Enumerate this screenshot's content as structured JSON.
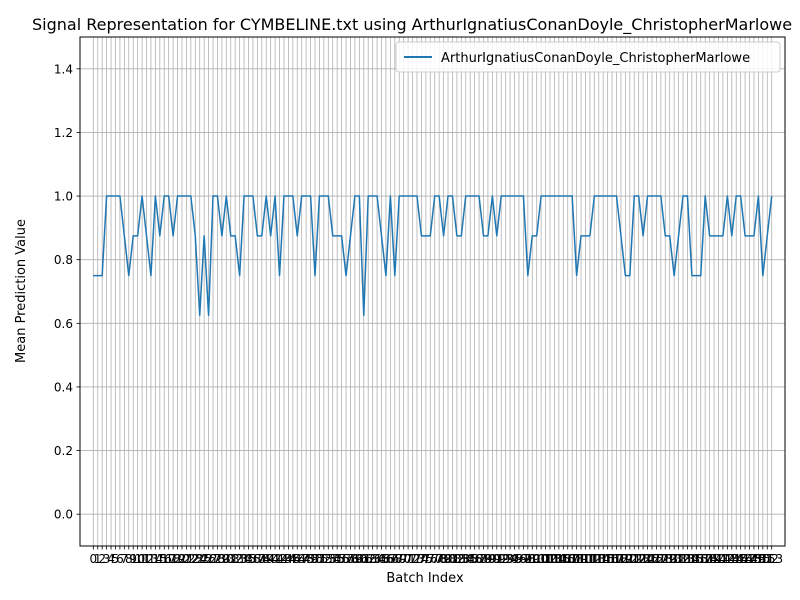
{
  "chart_data": {
    "type": "line",
    "title": "Signal Representation for CYMBELINE.txt using ArthurIgnatiusConanDoyle_ChristopherMarlowe",
    "xlabel": "Batch Index",
    "ylabel": "Mean Prediction Value",
    "ylim": [
      -0.1,
      1.5
    ],
    "xlim": [
      -3,
      156
    ],
    "yticks": [
      "0.0",
      "0.2",
      "0.4",
      "0.6",
      "0.8",
      "1.0",
      "1.2",
      "1.4"
    ],
    "ytick_values": [
      0.0,
      0.2,
      0.4,
      0.6,
      0.8,
      1.0,
      1.2,
      1.4
    ],
    "xticks_per_batch": true,
    "grid": true,
    "legend_position": "top-right",
    "series": [
      {
        "name": "ArthurIgnatiusConanDoyle_ChristopherMarlowe",
        "color": "#1f77b4",
        "values": [
          0.75,
          0.75,
          0.75,
          1.0,
          1.0,
          1.0,
          1.0,
          0.875,
          0.75,
          0.875,
          0.875,
          1.0,
          0.875,
          0.75,
          1.0,
          0.875,
          1.0,
          1.0,
          0.875,
          1.0,
          1.0,
          1.0,
          1.0,
          0.875,
          0.625,
          0.875,
          0.625,
          1.0,
          1.0,
          0.875,
          1.0,
          0.875,
          0.875,
          0.75,
          1.0,
          1.0,
          1.0,
          0.875,
          0.875,
          1.0,
          0.875,
          1.0,
          0.75,
          1.0,
          1.0,
          1.0,
          0.875,
          1.0,
          1.0,
          1.0,
          0.75,
          1.0,
          1.0,
          1.0,
          0.875,
          0.875,
          0.875,
          0.75,
          0.875,
          1.0,
          1.0,
          0.625,
          1.0,
          1.0,
          1.0,
          0.875,
          0.75,
          1.0,
          0.75,
          1.0,
          1.0,
          1.0,
          1.0,
          1.0,
          0.875,
          0.875,
          0.875,
          1.0,
          1.0,
          0.875,
          1.0,
          1.0,
          0.875,
          0.875,
          1.0,
          1.0,
          1.0,
          1.0,
          0.875,
          0.875,
          1.0,
          0.875,
          1.0,
          1.0,
          1.0,
          1.0,
          1.0,
          1.0,
          0.75,
          0.875,
          0.875,
          1.0,
          1.0,
          1.0,
          1.0,
          1.0,
          1.0,
          1.0,
          1.0,
          0.75,
          0.875,
          0.875,
          0.875,
          1.0,
          1.0,
          1.0,
          1.0,
          1.0,
          1.0,
          0.875,
          0.75,
          0.75,
          1.0,
          1.0,
          0.875,
          1.0,
          1.0,
          1.0,
          1.0,
          0.875,
          0.875,
          0.75,
          0.875,
          1.0,
          1.0,
          0.75,
          0.75,
          0.75,
          1.0,
          0.875,
          0.875,
          0.875,
          0.875,
          1.0,
          0.875,
          1.0,
          1.0,
          0.875,
          0.875,
          0.875,
          1.0,
          0.75,
          0.875,
          1.0
        ]
      }
    ]
  }
}
